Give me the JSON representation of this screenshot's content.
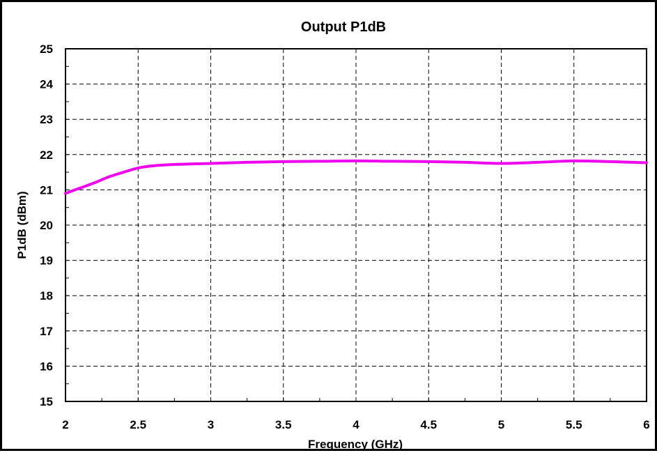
{
  "chart_data": {
    "type": "line",
    "title": "Output P1dB",
    "xlabel": "Frequency (GHz)",
    "ylabel": "P1dB (dBm)",
    "xlim": [
      2,
      6
    ],
    "ylim": [
      15,
      25
    ],
    "x_ticks": [
      "2",
      "2.5",
      "3",
      "3.5",
      "4",
      "4.5",
      "5",
      "5.5",
      "6"
    ],
    "y_ticks": [
      "15",
      "16",
      "17",
      "18",
      "19",
      "20",
      "21",
      "22",
      "23",
      "24",
      "25"
    ],
    "grid": true,
    "grid_style": "dashed",
    "series": [
      {
        "color": "#ee00ee",
        "x": [
          2.0,
          2.1,
          2.2,
          2.3,
          2.4,
          2.5,
          2.6,
          2.75,
          3.0,
          3.25,
          3.5,
          3.75,
          4.0,
          4.25,
          4.5,
          4.75,
          5.0,
          5.25,
          5.5,
          5.75,
          6.0
        ],
        "y": [
          20.9,
          21.05,
          21.2,
          21.37,
          21.5,
          21.62,
          21.68,
          21.72,
          21.75,
          21.78,
          21.8,
          21.81,
          21.82,
          21.81,
          21.8,
          21.78,
          21.75,
          21.78,
          21.82,
          21.8,
          21.77
        ]
      }
    ]
  }
}
